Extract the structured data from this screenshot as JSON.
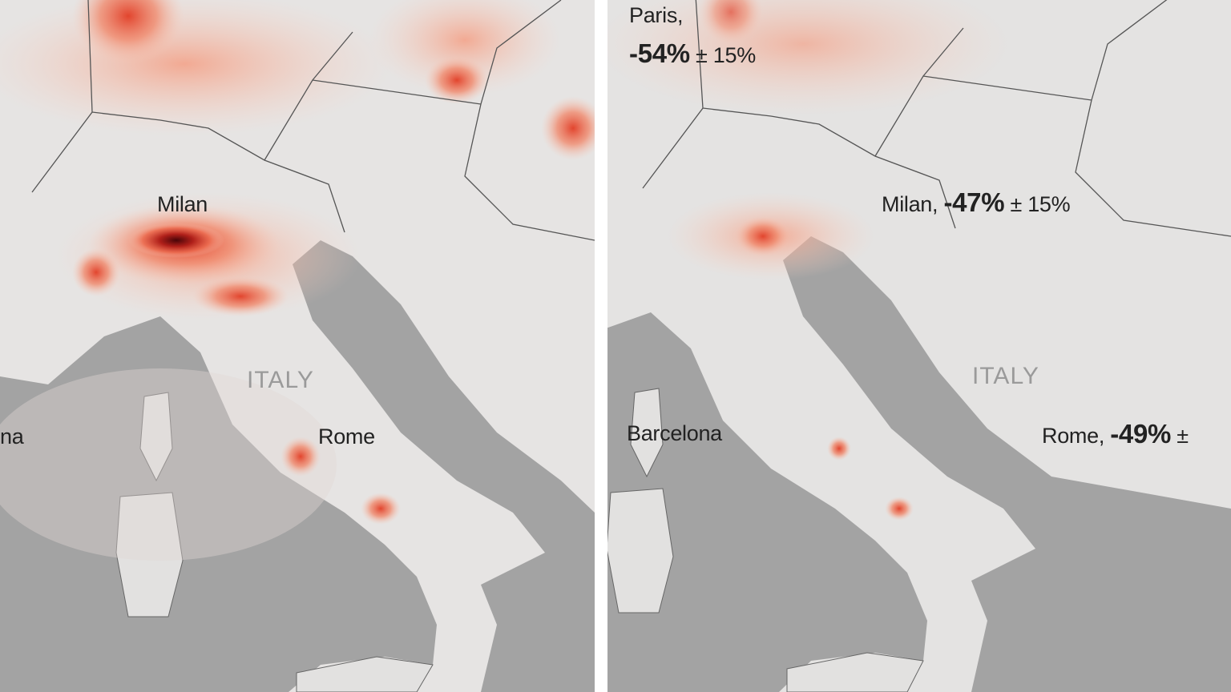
{
  "left_panel": {
    "labels": {
      "milan": "Milan",
      "italy": "ITALY",
      "rome": "Rome",
      "barcelona_partial": "na"
    }
  },
  "right_panel": {
    "labels": {
      "paris_city": "Paris,",
      "paris_change": "-54%",
      "paris_uncertainty": "± 15%",
      "milan_city": "Milan,",
      "milan_change": "-47%",
      "milan_uncertainty": "± 15%",
      "italy": "ITALY",
      "barcelona": "Barcelona",
      "rome_city": "Rome,",
      "rome_change": "-49%",
      "rome_uncertainty": "±"
    }
  },
  "colors": {
    "land": "#e6e4e3",
    "sea": "#9b9b9b",
    "pollution_low": "#f7c9b8",
    "pollution_mid": "#e8553a",
    "pollution_high": "#5a0a10",
    "borders": "#555555",
    "divider": "#ffffff"
  }
}
